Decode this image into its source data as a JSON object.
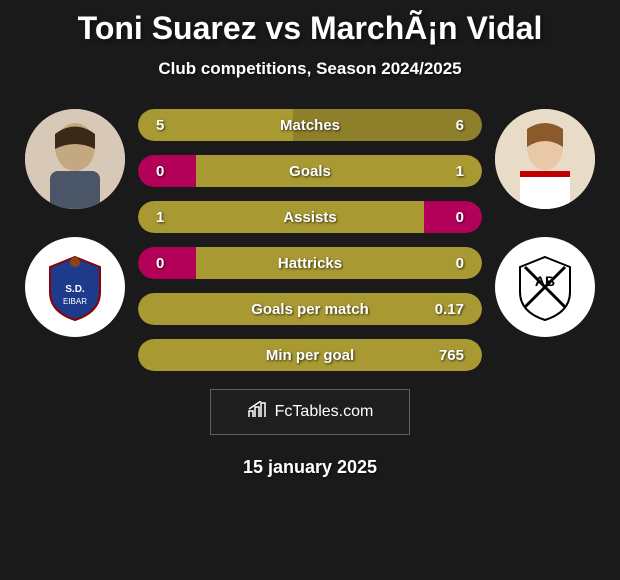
{
  "title": "Toni Suarez vs MarchÃ¡n Vidal",
  "subtitle": "Club competitions, Season 2024/2025",
  "date": "15 january 2025",
  "watermark": "FcTables.com",
  "colors": {
    "background": "#1a1a1a",
    "bar_left": "#a89932",
    "bar_right": "#8e7f2b",
    "bar_magenta": "#b30059",
    "text": "#ffffff"
  },
  "player_left": {
    "name": "Toni Suarez",
    "avatar_bg": "#d8c8b8",
    "team_badge_colors": [
      "#1e3a8a",
      "#8b0000"
    ]
  },
  "player_right": {
    "name": "MarchÃ¡n Vidal",
    "avatar_bg": "#e8dcc8",
    "team_badge_colors": [
      "#000000",
      "#ffffff"
    ]
  },
  "stats": [
    {
      "label": "Matches",
      "left_value": "5",
      "right_value": "6",
      "left_pct": 45,
      "left_color": "#a89932",
      "right_color": "#8e7f2b"
    },
    {
      "label": "Goals",
      "left_value": "0",
      "right_value": "1",
      "left_pct": 17,
      "left_color": "#b30059",
      "right_color": "#a89932"
    },
    {
      "label": "Assists",
      "left_value": "1",
      "right_value": "0",
      "left_pct": 83,
      "left_color": "#a89932",
      "right_color": "#b30059"
    },
    {
      "label": "Hattricks",
      "left_value": "0",
      "right_value": "0",
      "left_pct": 17,
      "left_color": "#b30059",
      "right_color": "#a89932"
    },
    {
      "label": "Goals per match",
      "left_value": "",
      "right_value": "0.17",
      "left_pct": 0,
      "left_color": "#a89932",
      "right_color": "#a89932"
    },
    {
      "label": "Min per goal",
      "left_value": "",
      "right_value": "765",
      "left_pct": 0,
      "left_color": "#a89932",
      "right_color": "#a89932"
    }
  ]
}
